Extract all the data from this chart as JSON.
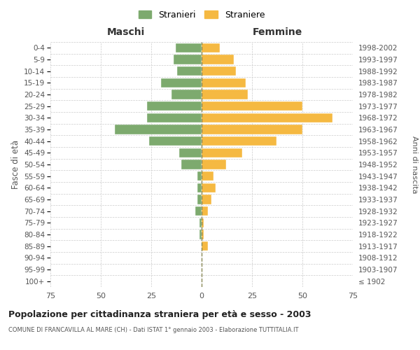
{
  "age_groups": [
    "100+",
    "95-99",
    "90-94",
    "85-89",
    "80-84",
    "75-79",
    "70-74",
    "65-69",
    "60-64",
    "55-59",
    "50-54",
    "45-49",
    "40-44",
    "35-39",
    "30-34",
    "25-29",
    "20-24",
    "15-19",
    "10-14",
    "5-9",
    "0-4"
  ],
  "birth_years": [
    "≤ 1902",
    "1903-1907",
    "1908-1912",
    "1913-1917",
    "1918-1922",
    "1923-1927",
    "1928-1932",
    "1933-1937",
    "1938-1942",
    "1943-1947",
    "1948-1952",
    "1953-1957",
    "1958-1962",
    "1963-1967",
    "1968-1972",
    "1973-1977",
    "1978-1982",
    "1983-1987",
    "1988-1992",
    "1993-1997",
    "1998-2002"
  ],
  "males": [
    0,
    0,
    0,
    0,
    1,
    1,
    3,
    2,
    2,
    2,
    10,
    11,
    26,
    43,
    27,
    27,
    15,
    20,
    12,
    14,
    13
  ],
  "females": [
    0,
    0,
    0,
    3,
    1,
    1,
    3,
    5,
    7,
    6,
    12,
    20,
    37,
    50,
    65,
    50,
    23,
    22,
    17,
    16,
    9
  ],
  "male_color": "#7daa6e",
  "female_color": "#f5b942",
  "grid_color": "#cccccc",
  "dashed_line_color": "#888855",
  "xlim": 75,
  "title": "Popolazione per cittadinanza straniera per età e sesso - 2003",
  "subtitle": "COMUNE DI FRANCAVILLA AL MARE (CH) - Dati ISTAT 1° gennaio 2003 - Elaborazione TUTTITALIA.IT",
  "ylabel_left": "Fasce di età",
  "ylabel_right": "Anni di nascita",
  "xlabel_left": "Maschi",
  "xlabel_right": "Femmine",
  "legend_stranieri": "Stranieri",
  "legend_straniere": "Straniere",
  "bar_height": 0.8
}
